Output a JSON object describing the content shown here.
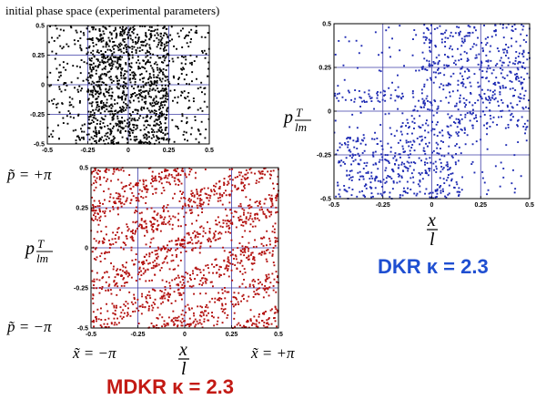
{
  "page_title": "initial phase space (experimental parameters)",
  "colors": {
    "initial": "#000000",
    "dkr": "#1f2bb3",
    "mdkr": "#b3110f",
    "grid": "#3b3ba6",
    "frame": "#000000"
  },
  "labels": {
    "ptilde_plus": "p̃ = +π",
    "ptilde_minus": "p̃ = −π",
    "xtilde_minus": "x̃ = −π",
    "xtilde_plus": "x̃ = +π",
    "p_label_main": "p",
    "p_label_frac_num": "T",
    "p_label_frac_den": "lm",
    "x_label_num": "x",
    "x_label_den": "l"
  },
  "captions": {
    "dkr": {
      "text": "DKR  κ = 2.3",
      "color": "#1f4fd1"
    },
    "mdkr": {
      "text": "MDKR  κ = 2.3",
      "color": "#c31a14"
    }
  },
  "chart_data": [
    {
      "id": "initial",
      "type": "scatter",
      "title": "initial phase space (experimental parameters)",
      "xlabel": "",
      "ylabel": "",
      "xlim": [
        -0.5,
        0.5
      ],
      "ylim": [
        -0.5,
        0.5
      ],
      "xticks": [
        "-0.5",
        "-0.25",
        "0",
        "0.25",
        "0.5"
      ],
      "yticks": [
        "0.5",
        "0.25",
        "0",
        "-0.25",
        "-0.5"
      ],
      "grid": true,
      "point_color": "#000000",
      "distribution": "dense band for -0.25 < x < 0.25, sparse outside",
      "point_count": 1400
    },
    {
      "id": "dkr",
      "type": "scatter",
      "xlabel": "x/l",
      "ylabel": "p T/lm",
      "xlim": [
        -0.5,
        0.5
      ],
      "ylim": [
        -0.5,
        0.5
      ],
      "xticks": [
        "-0.5",
        "-0.25",
        "0",
        "0.25",
        "0.5"
      ],
      "yticks": [
        "0.5",
        "0.25",
        "0",
        "-0.25",
        "-0.5"
      ],
      "grid": true,
      "point_color": "#1f2bb3",
      "distribution": "scattered points with empty diagonal regions (upper-left, left-middle, lower-right)",
      "point_count": 1100,
      "caption": "DKR  κ = 2.3"
    },
    {
      "id": "mdkr",
      "type": "scatter",
      "xlabel": "x/l",
      "ylabel": "p T/lm",
      "xlim": [
        -0.5,
        0.5
      ],
      "ylim": [
        -0.5,
        0.5
      ],
      "xticks": [
        "-0.5",
        "-0.25",
        "0",
        "0.25",
        "0.5"
      ],
      "yticks": [
        "0.5",
        "0.25",
        "0",
        "-0.25",
        "-0.5"
      ],
      "grid": true,
      "point_color": "#b3110f",
      "distribution": "diagonal stripes of points running from lower-left to upper-right",
      "point_count": 1600,
      "caption": "MDKR  κ = 2.3"
    }
  ]
}
